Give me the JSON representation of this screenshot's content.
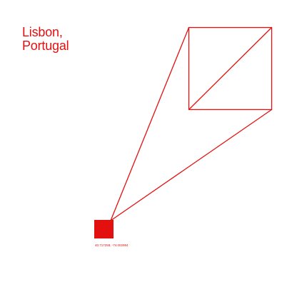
{
  "title": {
    "line1": "Lisbon,",
    "line2": "Portugal"
  },
  "coordinates": "40.717258, -74.002984",
  "colors": {
    "accent": "#e31010",
    "background": "#ffffff"
  }
}
